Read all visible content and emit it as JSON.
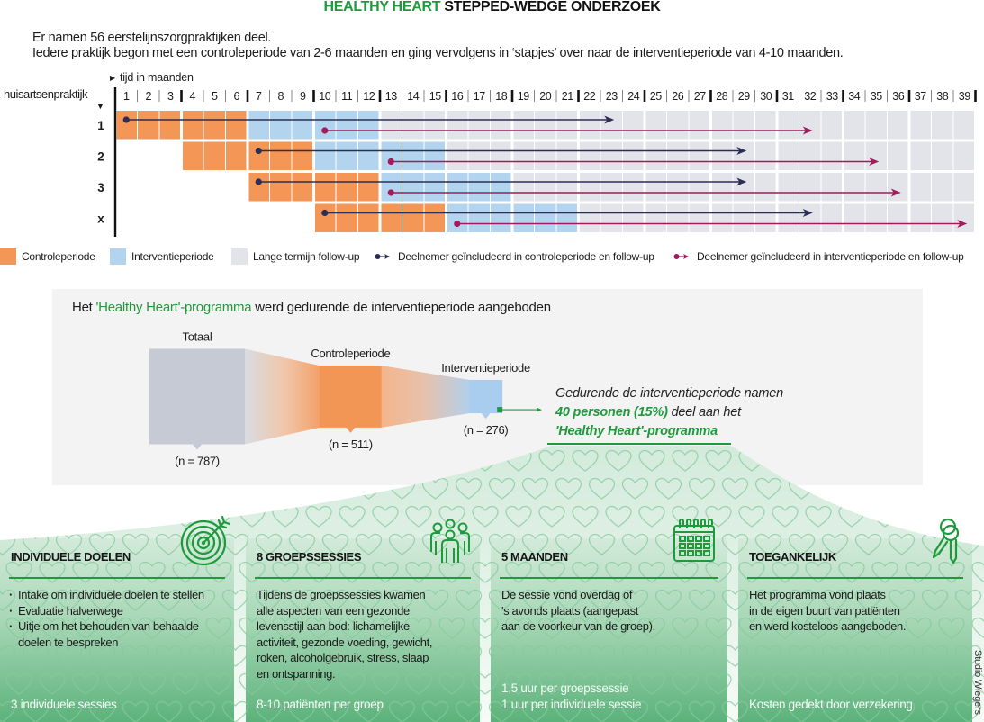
{
  "title": {
    "highlight": "HEALTHY HEART",
    "rest": " STEPPED-WEDGE ONDERZOEK"
  },
  "intro": [
    "Er namen 56 eerstelijnszorgpraktijken deel.",
    "Iedere praktijk begon met een controleperiode van 2-6 maanden en ging vervolgens in ‘stapjes’ over naar de interventieperiode van 4-10 maanden."
  ],
  "colors": {
    "control": "#F39656",
    "intervention": "#B3D4EE",
    "followup": "#E3E4E9",
    "control_participant": "#2B2E55",
    "intervention_participant": "#A5195D",
    "brand_green": "#1E9A3C",
    "funnel_total": "#C5CAD5",
    "funnel_control": "#F29656",
    "funnel_intervention": "#A9CDEE"
  },
  "stepped_wedge": {
    "time_axis_label": "tijd in maanden",
    "practice_axis_label": "huisartsenpraktijk",
    "month_labels": [
      "1",
      "2",
      "3",
      "4",
      "5",
      "6",
      "7",
      "8",
      "9",
      "10",
      "11",
      "12",
      "13",
      "14",
      "15",
      "16",
      "17",
      "18",
      "19",
      "20",
      "21",
      "22",
      "23",
      "24",
      "25",
      "26",
      "27",
      "28",
      "29",
      "30",
      "31",
      "32",
      "33",
      "34",
      "35",
      "36",
      "37",
      "38",
      "39"
    ],
    "rows": [
      {
        "label": "1",
        "control": [
          1,
          6
        ],
        "intervention": [
          7,
          12
        ],
        "followup": [
          13,
          39
        ],
        "control_participant": [
          1,
          23
        ],
        "intervention_participant": [
          10,
          32
        ]
      },
      {
        "label": "2",
        "control": [
          4,
          9
        ],
        "intervention": [
          10,
          15
        ],
        "followup": [
          16,
          39
        ],
        "control_participant": [
          7,
          29
        ],
        "intervention_participant": [
          13,
          35
        ]
      },
      {
        "label": "3",
        "control": [
          7,
          12
        ],
        "intervention": [
          13,
          18
        ],
        "followup": [
          19,
          39
        ],
        "control_participant": [
          7,
          29
        ],
        "intervention_participant": [
          13,
          36
        ]
      },
      {
        "label": "x",
        "control": [
          10,
          15
        ],
        "intervention": [
          16,
          21
        ],
        "followup": [
          22,
          39
        ],
        "control_participant": [
          10,
          32
        ],
        "intervention_participant": [
          16,
          39
        ]
      }
    ]
  },
  "legend": [
    {
      "key": "control",
      "kind": "swatch",
      "label": "Controleperiode"
    },
    {
      "key": "intervention",
      "kind": "swatch",
      "label": "Interventieperiode"
    },
    {
      "key": "followup",
      "kind": "swatch",
      "label": "Lange termijn follow-up"
    },
    {
      "key": "control_participant",
      "kind": "marker",
      "label": "Deelnemer geïncludeerd in controleperiode en follow-up"
    },
    {
      "key": "intervention_participant",
      "kind": "marker",
      "label": "Deelnemer geïncludeerd in interventieperiode en follow-up"
    }
  ],
  "program_panel": {
    "heading": {
      "pre": "Het ",
      "highlight": "'Healthy Heart'-programma",
      "post": " werd gedurende de interventieperiode aangeboden"
    },
    "funnel": [
      {
        "label": "Totaal",
        "n": 787,
        "n_label": "(n = 787)"
      },
      {
        "label": "Controleperiode",
        "n": 511,
        "n_label": "(n = 511)"
      },
      {
        "label": "Interventieperiode",
        "n": 276,
        "n_label": "(n = 276)"
      }
    ],
    "callout": {
      "line1": "Gedurende de interventieperiode namen",
      "line2_highlight": "40 personen (15%)",
      "line2_rest": " deel aan het",
      "line3_highlight": "'Healthy Heart'-programma"
    }
  },
  "cards": [
    {
      "icon": "target-icon",
      "title": "INDIVIDUELE DOELEN",
      "bullets": [
        "Intake om individuele doelen te stellen",
        "Evaluatie halverwege",
        "Uitje om het behouden van behaalde doelen te bespreken"
      ],
      "footer": [
        "3 individuele sessies"
      ]
    },
    {
      "icon": "group-icon",
      "title": "8 GROEPSSESSIES",
      "lines": [
        "Tijdens de groepssessies kwamen",
        "alle aspecten van een gezonde",
        "levensstijl aan bod: lichamelijke",
        "activiteit, gezonde voeding, gewicht,",
        "roken, alcoholgebruik, stress, slaap",
        "en ontspanning."
      ],
      "footer": [
        "8-10 patiënten per groep"
      ]
    },
    {
      "icon": "calendar-icon",
      "title": "5 MAANDEN",
      "lines": [
        "De sessie vond overdag of",
        "'s avonds plaats (aangepast",
        "aan de voorkeur van de groep)."
      ],
      "footer": [
        "1,5 uur per groepssessie",
        "1 uur per individuele sessie"
      ]
    },
    {
      "icon": "key-icon",
      "title": "TOEGANKELIJK",
      "lines": [
        "Het programma vond plaats",
        "in de eigen buurt van patiënten",
        "en werd kosteloos aangeboden."
      ],
      "footer": [
        "Kosten gedekt door verzekering"
      ]
    }
  ],
  "credit": "Studio Wiegers"
}
